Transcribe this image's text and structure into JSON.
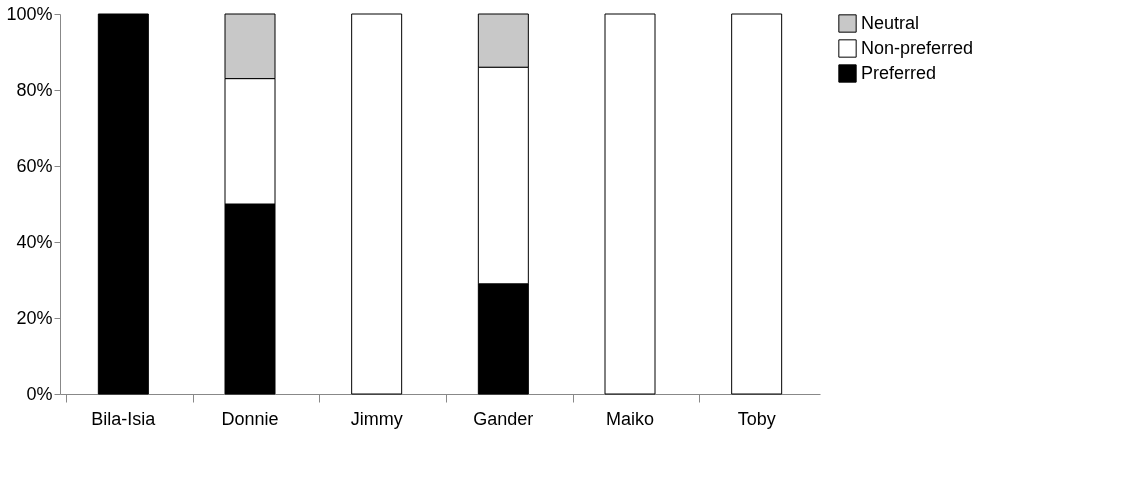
{
  "chart_data": {
    "type": "bar",
    "stacked": true,
    "categories": [
      "Bila-Isia",
      "Donnie",
      "Jimmy",
      "Gander",
      "Maiko",
      "Toby"
    ],
    "series": [
      {
        "name": "Preferred",
        "color": "#000000",
        "values": [
          100,
          50,
          0,
          29,
          0,
          0
        ]
      },
      {
        "name": "Non-preferred",
        "color": "#ffffff",
        "values": [
          0,
          33,
          100,
          57,
          100,
          100
        ]
      },
      {
        "name": "Neutral",
        "color": "#c8c8c8",
        "values": [
          0,
          17,
          0,
          14,
          0,
          0
        ]
      }
    ],
    "ylim": [
      0,
      100
    ],
    "yticks": [
      {
        "value": 0,
        "label": "0%"
      },
      {
        "value": 20,
        "label": "20%"
      },
      {
        "value": 40,
        "label": "40%"
      },
      {
        "value": 60,
        "label": "60%"
      },
      {
        "value": 80,
        "label": "80%"
      },
      {
        "value": 100,
        "label": "100%"
      }
    ],
    "grid": false,
    "legend": "right"
  }
}
